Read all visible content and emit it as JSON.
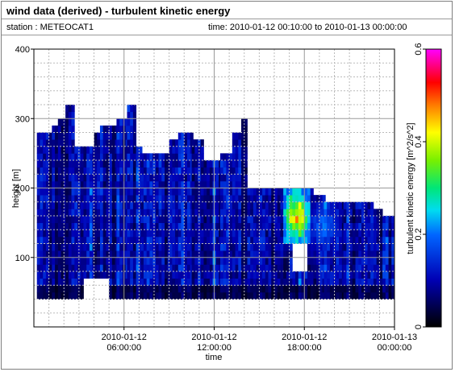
{
  "header": {
    "title": "wind data (derived) - turbulent kinetic energy",
    "station": "station : METEOCAT1",
    "time_range": "time: 2010-01-12 00:10:00 to 2010-01-13 00:00:00"
  },
  "chart_data": {
    "type": "heatmap",
    "title": "wind data (derived) - turbulent kinetic energy",
    "xlabel": "time",
    "ylabel": "height [m]",
    "colorbar_label": "turbulent kinetic energy [m^2/s^2]",
    "x_range": [
      "2010-01-12 00:10:00",
      "2010-01-13 00:00:00"
    ],
    "y_range": [
      0,
      400
    ],
    "color_range": [
      0,
      0.6
    ],
    "x_ticks": [
      {
        "line1": "2010-01-12",
        "line2": "06:00:00",
        "hour": 6
      },
      {
        "line1": "2010-01-12",
        "line2": "12:00:00",
        "hour": 12
      },
      {
        "line1": "2010-01-12",
        "line2": "18:00:00",
        "hour": 18
      },
      {
        "line1": "2010-01-13",
        "line2": "00:00:00",
        "hour": 24
      }
    ],
    "y_ticks": [
      {
        "value": 100,
        "label": "100"
      },
      {
        "value": 200,
        "label": "200"
      },
      {
        "value": 300,
        "label": "300"
      },
      {
        "value": 400,
        "label": "400"
      }
    ],
    "color_ticks": [
      {
        "value": 0,
        "label": "0"
      },
      {
        "value": 0.2,
        "label": "0.2"
      },
      {
        "value": 0.4,
        "label": "0.4"
      },
      {
        "value": 0.6,
        "label": "0.6"
      }
    ],
    "grid": true,
    "bottom_height_m": 40,
    "columns": [
      {
        "h0": 0.2,
        "h1": 1.2,
        "top": 275
      },
      {
        "h0": 1.2,
        "h1": 1.6,
        "top": 285
      },
      {
        "h0": 1.6,
        "h1": 2.1,
        "top": 300
      },
      {
        "h0": 2.1,
        "h1": 2.7,
        "top": 315
      },
      {
        "h0": 2.7,
        "h1": 4.0,
        "top": 255
      },
      {
        "h0": 4.0,
        "h1": 4.4,
        "top": 275
      },
      {
        "h0": 4.4,
        "h1": 5.5,
        "top": 285
      },
      {
        "h0": 5.5,
        "h1": 6.2,
        "top": 300
      },
      {
        "h0": 6.2,
        "h1": 6.8,
        "top": 315
      },
      {
        "h0": 6.8,
        "h1": 7.1,
        "top": 255
      },
      {
        "h0": 7.1,
        "h1": 9.0,
        "top": 245
      },
      {
        "h0": 9.0,
        "h1": 9.6,
        "top": 265
      },
      {
        "h0": 9.6,
        "h1": 10.5,
        "top": 275
      },
      {
        "h0": 10.5,
        "h1": 11.3,
        "top": 265
      },
      {
        "h0": 11.3,
        "h1": 12.4,
        "top": 235
      },
      {
        "h0": 12.4,
        "h1": 13.2,
        "top": 245
      },
      {
        "h0": 13.2,
        "h1": 13.8,
        "top": 275
      },
      {
        "h0": 13.8,
        "h1": 14.2,
        "top": 295
      },
      {
        "h0": 14.2,
        "h1": 18.6,
        "top": 195
      },
      {
        "h0": 18.6,
        "h1": 19.3,
        "top": 185
      },
      {
        "h0": 19.3,
        "h1": 20.6,
        "top": 175
      },
      {
        "h0": 20.6,
        "h1": 22.6,
        "top": 175
      },
      {
        "h0": 22.6,
        "h1": 23.2,
        "top": 165
      },
      {
        "h0": 23.2,
        "h1": 24.0,
        "top": 155
      }
    ],
    "gaps": [
      {
        "h0": 3.4,
        "h1": 5.0,
        "y0": 40,
        "y1": 65
      },
      {
        "h0": 17.2,
        "h1": 18.2,
        "y0": 80,
        "y1": 120
      }
    ],
    "hotspots": [
      {
        "h0": 16.6,
        "h1": 18.4,
        "y0": 120,
        "y1": 200,
        "value": 0.5
      },
      {
        "h0": 18.2,
        "h1": 20.4,
        "y0": 110,
        "y1": 180,
        "value": 0.22
      },
      {
        "h0": 4.0,
        "h1": 4.6,
        "y0": 150,
        "y1": 260,
        "value": 0.16
      },
      {
        "h0": 9.0,
        "h1": 9.4,
        "y0": 80,
        "y1": 230,
        "value": 0.17
      }
    ]
  }
}
